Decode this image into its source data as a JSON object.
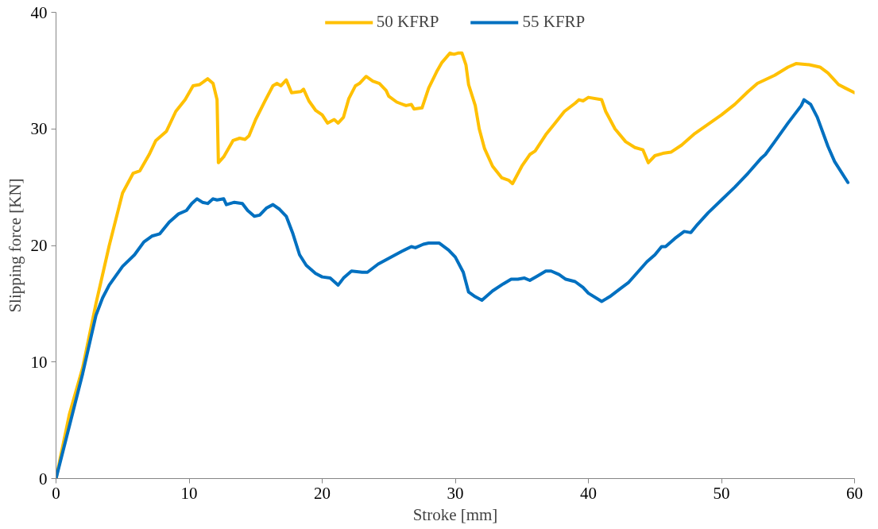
{
  "chart_data": {
    "type": "line",
    "xlabel": "Stroke [mm]",
    "ylabel": "Slipping force [KN]",
    "xlim": [
      0,
      60
    ],
    "ylim": [
      0,
      40
    ],
    "xticks": [
      0,
      10,
      20,
      30,
      40,
      50,
      60
    ],
    "yticks": [
      0,
      10,
      20,
      30,
      40
    ],
    "grid": false,
    "legend": "top",
    "marker": "none",
    "line_style": "solid",
    "series": [
      {
        "name": "50 KFRP",
        "color": "#ffc000",
        "x": [
          0,
          1,
          2,
          3,
          4,
          5,
          5.8,
          6.3,
          7,
          7.5,
          8.3,
          9,
          9.7,
          10.3,
          10.8,
          11.4,
          11.8,
          12.1,
          12.2,
          12.6,
          13.3,
          13.8,
          14.2,
          14.5,
          15,
          15.7,
          16.3,
          16.6,
          16.9,
          17.3,
          17.7,
          18.4,
          18.6,
          19,
          19.5,
          20,
          20.4,
          20.9,
          21.2,
          21.6,
          22,
          22.5,
          22.8,
          23.3,
          23.8,
          24.3,
          24.8,
          25,
          25.6,
          26.3,
          26.7,
          26.9,
          27.5,
          28,
          28.6,
          29,
          29.6,
          29.9,
          30.2,
          30.5,
          30.8,
          31,
          31.5,
          31.8,
          32.2,
          32.8,
          33.5,
          34,
          34.3,
          35,
          35.6,
          36,
          36.8,
          37.5,
          38.2,
          39,
          39.3,
          39.6,
          40,
          41,
          41.3,
          42,
          42.8,
          43.5,
          44.1,
          44.5,
          45,
          45.6,
          46.2,
          47,
          48,
          49,
          50,
          51,
          52,
          52.7,
          54,
          55,
          55.6,
          56.6,
          57.4,
          58,
          58.8,
          59.3,
          60
        ],
        "values": [
          0,
          5.5,
          9.5,
          15,
          20,
          24.5,
          26.2,
          26.4,
          27.8,
          29,
          29.8,
          31.5,
          32.5,
          33.7,
          33.8,
          34.3,
          33.9,
          32.5,
          27.1,
          27.6,
          29,
          29.2,
          29.1,
          29.4,
          30.8,
          32.4,
          33.7,
          33.9,
          33.7,
          34.2,
          33.1,
          33.2,
          33.4,
          32.4,
          31.6,
          31.2,
          30.5,
          30.8,
          30.5,
          31,
          32.6,
          33.7,
          33.9,
          34.5,
          34.1,
          33.9,
          33.3,
          32.8,
          32.3,
          32,
          32.1,
          31.7,
          31.8,
          33.5,
          34.9,
          35.7,
          36.5,
          36.4,
          36.5,
          36.5,
          35.5,
          33.8,
          32,
          30,
          28.3,
          26.8,
          25.8,
          25.6,
          25.3,
          26.8,
          27.8,
          28.1,
          29.5,
          30.5,
          31.5,
          32.2,
          32.5,
          32.4,
          32.7,
          32.5,
          31.5,
          30,
          28.9,
          28.4,
          28.2,
          27.1,
          27.7,
          27.9,
          28,
          28.6,
          29.6,
          30.4,
          31.2,
          32.1,
          33.2,
          33.9,
          34.6,
          35.3,
          35.6,
          35.5,
          35.3,
          34.8,
          33.8,
          33.5,
          33.1
        ]
      },
      {
        "name": "55 KFRP",
        "color": "#0070c0",
        "x": [
          0,
          1,
          2,
          3,
          3.5,
          4,
          5,
          5.9,
          6.6,
          7.2,
          7.8,
          8.5,
          9.2,
          9.8,
          10.2,
          10.6,
          11,
          11.4,
          11.8,
          12.1,
          12.6,
          12.8,
          13.4,
          14,
          14.4,
          14.9,
          15.3,
          15.8,
          16.3,
          16.8,
          17.3,
          17.8,
          18.3,
          18.8,
          19.5,
          20,
          20.6,
          21.2,
          21.6,
          22.2,
          23,
          23.4,
          24.2,
          25,
          26,
          26.7,
          27,
          27.6,
          28,
          28.8,
          29.5,
          30,
          30.6,
          31,
          31.5,
          32,
          32.8,
          33.6,
          34.2,
          34.7,
          35.2,
          35.6,
          36.2,
          36.8,
          37.2,
          37.8,
          38.3,
          39,
          39.6,
          40,
          41,
          41.6,
          42.4,
          43,
          43.7,
          44.4,
          45,
          45.5,
          45.8,
          46.5,
          47.2,
          47.7,
          48.2,
          49,
          50,
          51,
          52,
          53,
          53.3,
          54,
          55,
          56,
          56.2,
          56.7,
          57.2,
          58,
          58.5,
          59.5
        ],
        "values": [
          0,
          4.5,
          9,
          14,
          15.5,
          16.6,
          18.2,
          19.2,
          20.3,
          20.8,
          21,
          22,
          22.7,
          23,
          23.6,
          24,
          23.7,
          23.6,
          24,
          23.9,
          24,
          23.5,
          23.7,
          23.6,
          23,
          22.5,
          22.6,
          23.2,
          23.5,
          23.1,
          22.5,
          21,
          19.2,
          18.3,
          17.6,
          17.3,
          17.2,
          16.6,
          17.2,
          17.8,
          17.7,
          17.7,
          18.4,
          18.9,
          19.5,
          19.9,
          19.8,
          20.1,
          20.2,
          20.2,
          19.6,
          19,
          17.7,
          16,
          15.6,
          15.3,
          16.1,
          16.7,
          17.1,
          17.1,
          17.2,
          17,
          17.4,
          17.8,
          17.8,
          17.5,
          17.1,
          16.9,
          16.4,
          15.9,
          15.2,
          15.6,
          16.3,
          16.8,
          17.7,
          18.6,
          19.2,
          19.9,
          19.9,
          20.6,
          21.2,
          21.1,
          21.8,
          22.8,
          23.9,
          25,
          26.2,
          27.5,
          27.8,
          28.9,
          30.5,
          32,
          32.5,
          32.1,
          31,
          28.5,
          27.2,
          25.4
        ]
      }
    ]
  }
}
